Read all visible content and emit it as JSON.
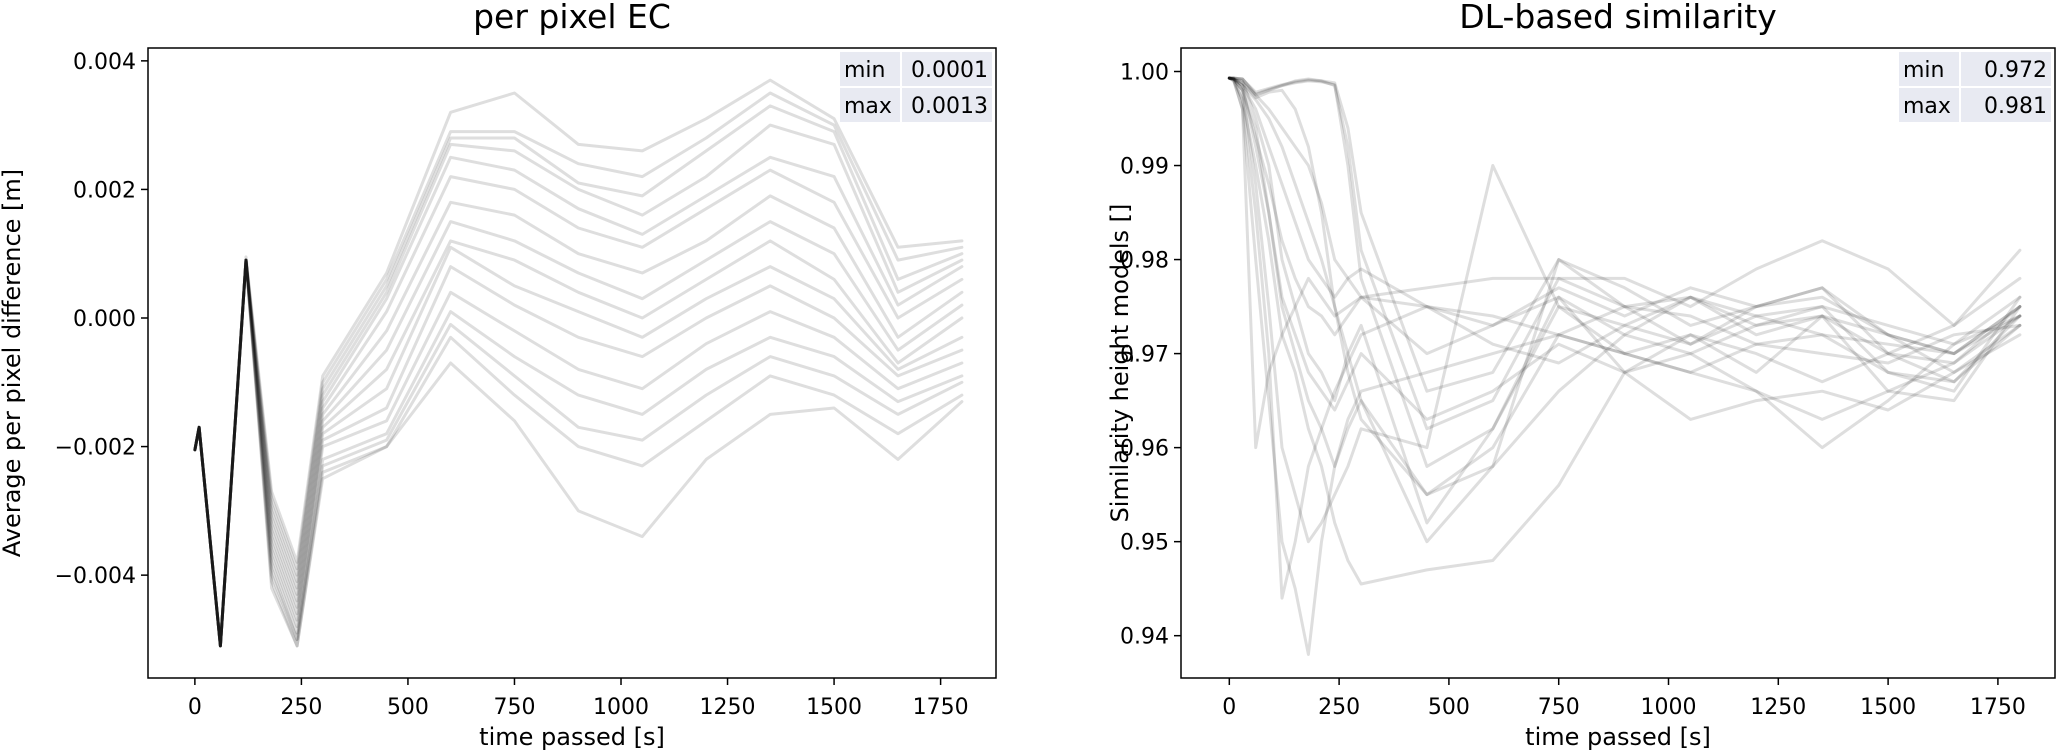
{
  "chart_data": [
    {
      "type": "line",
      "title": "per pixel EC",
      "xlabel": "time passed [s]",
      "ylabel": "Average per pixel difference [m]",
      "xlim": [
        -110,
        1880
      ],
      "ylim": [
        -0.0056,
        0.0042
      ],
      "xticks": [
        0,
        250,
        500,
        750,
        1000,
        1250,
        1500,
        1750
      ],
      "xtick_labels": [
        "0",
        "250",
        "500",
        "750",
        "1000",
        "1250",
        "1500",
        "1750"
      ],
      "yticks": [
        0.004,
        0.002,
        0.0,
        -0.002,
        -0.004
      ],
      "ytick_labels": [
        "0.004",
        "0.002",
        "0.000",
        "−0.002",
        "−0.004"
      ],
      "grid": false,
      "line_color": "#000000",
      "line_alpha": 0.13,
      "table": [
        {
          "label": "min",
          "value": "0.0001"
        },
        {
          "label": "max",
          "value": "0.0013"
        }
      ],
      "x": [
        0,
        10,
        60,
        120,
        180,
        240,
        300,
        450,
        600,
        750,
        900,
        1050,
        1200,
        1350,
        1500,
        1650,
        1800
      ],
      "series": [
        {
          "values": [
            -0.00205,
            -0.0017,
            -0.0051,
            0.00095,
            -0.0027,
            -0.0038,
            -0.0009,
            0.0007,
            0.0032,
            0.0035,
            0.0027,
            0.0026,
            0.0031,
            0.0037,
            0.0031,
            0.0011,
            0.0012
          ]
        },
        {
          "values": [
            -0.00205,
            -0.0017,
            -0.0051,
            0.0009,
            -0.0028,
            -0.0039,
            -0.001,
            0.0006,
            0.0029,
            0.0029,
            0.0024,
            0.0022,
            0.0028,
            0.0035,
            0.003,
            0.0009,
            0.0011
          ]
        },
        {
          "values": [
            -0.00205,
            -0.0017,
            -0.0051,
            0.0009,
            -0.0029,
            -0.004,
            -0.0011,
            0.0005,
            0.0028,
            0.0028,
            0.0021,
            0.0019,
            0.0026,
            0.0033,
            0.0029,
            0.0006,
            0.001
          ]
        },
        {
          "values": [
            -0.00205,
            -0.0017,
            -0.0051,
            0.0009,
            -0.003,
            -0.0041,
            -0.0012,
            0.0004,
            0.0027,
            0.0026,
            0.002,
            0.0016,
            0.0022,
            0.003,
            0.0027,
            0.0004,
            0.0009
          ]
        },
        {
          "values": [
            -0.00205,
            -0.0017,
            -0.0051,
            0.0009,
            -0.0031,
            -0.0042,
            -0.0013,
            0.0003,
            0.0025,
            0.0023,
            0.0017,
            0.0013,
            0.0019,
            0.0025,
            0.0022,
            0.0002,
            0.0008
          ]
        },
        {
          "values": [
            -0.00205,
            -0.0017,
            -0.0051,
            0.0009,
            -0.0032,
            -0.0043,
            -0.0014,
            0.0001,
            0.0022,
            0.002,
            0.0014,
            0.0011,
            0.0017,
            0.0023,
            0.0018,
            0.0,
            0.0006
          ]
        },
        {
          "values": [
            -0.00205,
            -0.0017,
            -0.0051,
            0.0009,
            -0.0033,
            -0.0044,
            -0.0015,
            -0.0002,
            0.0018,
            0.0016,
            0.001,
            0.0007,
            0.0012,
            0.0019,
            0.0014,
            -0.0003,
            0.0004
          ]
        },
        {
          "values": [
            -0.00205,
            -0.0017,
            -0.0051,
            0.0009,
            -0.0034,
            -0.0045,
            -0.0016,
            -0.0005,
            0.0015,
            0.0012,
            0.0007,
            0.0003,
            0.0009,
            0.0015,
            0.001,
            -0.0005,
            0.0002
          ]
        },
        {
          "values": [
            -0.00205,
            -0.0017,
            -0.0051,
            0.0009,
            -0.0035,
            -0.0046,
            -0.0017,
            -0.0008,
            0.0012,
            0.0009,
            0.0004,
            0.0,
            0.0006,
            0.0012,
            0.0006,
            -0.0007,
            0.0
          ]
        },
        {
          "values": [
            -0.00205,
            -0.0017,
            -0.0051,
            0.0009,
            -0.0036,
            -0.0047,
            -0.0018,
            -0.0011,
            0.0011,
            0.0005,
            0.0001,
            -0.0003,
            0.0003,
            0.0008,
            0.0003,
            -0.0008,
            -0.0003
          ]
        },
        {
          "values": [
            -0.00205,
            -0.0017,
            -0.0051,
            0.0009,
            -0.0037,
            -0.0048,
            -0.0019,
            -0.0014,
            0.0008,
            0.0002,
            -0.0003,
            -0.0006,
            0.0,
            0.0005,
            0.0,
            -0.0009,
            -0.0005
          ]
        },
        {
          "values": [
            -0.00205,
            -0.0017,
            -0.0051,
            0.0009,
            -0.0038,
            -0.0049,
            -0.002,
            -0.0016,
            0.0004,
            -0.0002,
            -0.0008,
            -0.0011,
            -0.0004,
            0.0001,
            -0.0003,
            -0.0011,
            -0.0007
          ]
        },
        {
          "values": [
            -0.00205,
            -0.0017,
            -0.0051,
            0.0009,
            -0.0039,
            -0.005,
            -0.0022,
            -0.0018,
            0.0001,
            -0.0006,
            -0.0012,
            -0.0015,
            -0.0008,
            -0.0003,
            -0.0006,
            -0.0013,
            -0.0009
          ]
        },
        {
          "values": [
            -0.00205,
            -0.0017,
            -0.0051,
            0.0009,
            -0.004,
            -0.005,
            -0.0023,
            -0.0019,
            -0.0001,
            -0.0009,
            -0.0017,
            -0.0019,
            -0.0012,
            -0.0006,
            -0.0009,
            -0.0015,
            -0.001
          ]
        },
        {
          "values": [
            -0.00205,
            -0.0017,
            -0.0051,
            0.0009,
            -0.0041,
            -0.0051,
            -0.0024,
            -0.002,
            -0.0003,
            -0.0012,
            -0.002,
            -0.0023,
            -0.0016,
            -0.0009,
            -0.0012,
            -0.0018,
            -0.0012
          ]
        },
        {
          "values": [
            -0.00205,
            -0.0017,
            -0.0051,
            0.0009,
            -0.0042,
            -0.0051,
            -0.0025,
            -0.002,
            -0.0007,
            -0.0016,
            -0.003,
            -0.0034,
            -0.0022,
            -0.0015,
            -0.0014,
            -0.0022,
            -0.0013
          ]
        }
      ]
    },
    {
      "type": "line",
      "title": "DL-based similarity",
      "xlabel": "time passed [s]",
      "ylabel": "Similarity height models []",
      "xlim": [
        -110,
        1880
      ],
      "ylim": [
        0.9355,
        1.0025
      ],
      "xticks": [
        0,
        250,
        500,
        750,
        1000,
        1250,
        1500,
        1750
      ],
      "xtick_labels": [
        "0",
        "250",
        "500",
        "750",
        "1000",
        "1250",
        "1500",
        "1750"
      ],
      "yticks": [
        1.0,
        0.99,
        0.98,
        0.97,
        0.96,
        0.95,
        0.94
      ],
      "ytick_labels": [
        "1.00",
        "0.99",
        "0.98",
        "0.97",
        "0.96",
        "0.95",
        "0.94"
      ],
      "grid": false,
      "line_color": "#000000",
      "line_alpha": 0.13,
      "table": [
        {
          "label": "min",
          "value": "0.972"
        },
        {
          "label": "max",
          "value": "0.981"
        }
      ],
      "x": [
        0,
        10,
        30,
        60,
        90,
        120,
        150,
        180,
        210,
        240,
        270,
        300,
        450,
        600,
        750,
        900,
        1050,
        1200,
        1350,
        1500,
        1650,
        1800
      ],
      "series": [
        {
          "values": [
            0.9993,
            0.9993,
            0.9992,
            0.9975,
            0.998,
            0.9985,
            0.999,
            0.9992,
            0.999,
            0.9988,
            0.994,
            0.985,
            0.966,
            0.968,
            0.98,
            0.977,
            0.973,
            0.975,
            0.977,
            0.97,
            0.969,
            0.975
          ]
        },
        {
          "values": [
            0.9993,
            0.9993,
            0.9992,
            0.9978,
            0.9982,
            0.9986,
            0.9989,
            0.9991,
            0.999,
            0.9985,
            0.992,
            0.981,
            0.962,
            0.965,
            0.978,
            0.975,
            0.971,
            0.974,
            0.975,
            0.968,
            0.967,
            0.974
          ]
        },
        {
          "values": [
            0.9993,
            0.9993,
            0.9992,
            0.9976,
            0.9981,
            0.9985,
            0.9988,
            0.999,
            0.9989,
            0.9986,
            0.99,
            0.978,
            0.958,
            0.962,
            0.976,
            0.972,
            0.97,
            0.973,
            0.974,
            0.966,
            0.965,
            0.975
          ]
        },
        {
          "values": [
            0.9993,
            0.9993,
            0.999,
            0.995,
            0.99,
            0.98,
            0.975,
            0.97,
            0.968,
            0.965,
            0.97,
            0.973,
            0.952,
            0.962,
            0.975,
            0.973,
            0.976,
            0.972,
            0.974,
            0.97,
            0.967,
            0.973
          ]
        },
        {
          "values": [
            0.9993,
            0.9993,
            0.9985,
            0.992,
            0.985,
            0.975,
            0.97,
            0.965,
            0.962,
            0.958,
            0.962,
            0.965,
            0.95,
            0.958,
            0.98,
            0.975,
            0.974,
            0.971,
            0.972,
            0.968,
            0.966,
            0.976
          ]
        },
        {
          "values": [
            0.9993,
            0.9992,
            0.998,
            0.988,
            0.975,
            0.96,
            0.955,
            0.95,
            0.952,
            0.955,
            0.958,
            0.962,
            0.96,
            0.99,
            0.975,
            0.97,
            0.972,
            0.968,
            0.974,
            0.972,
            0.97,
            0.975
          ]
        },
        {
          "values": [
            0.9993,
            0.999,
            0.997,
            0.985,
            0.97,
            0.944,
            0.95,
            0.958,
            0.962,
            0.966,
            0.969,
            0.972,
            0.975,
            0.973,
            0.977,
            0.974,
            0.977,
            0.975,
            0.976,
            0.972,
            0.97,
            0.975
          ]
        },
        {
          "values": [
            0.9993,
            0.999,
            0.996,
            0.98,
            0.965,
            0.95,
            0.945,
            0.938,
            0.95,
            0.958,
            0.963,
            0.966,
            0.968,
            0.97,
            0.972,
            0.975,
            0.976,
            0.974,
            0.972,
            0.971,
            0.97,
            0.974
          ]
        },
        {
          "values": [
            0.9993,
            0.9992,
            0.997,
            0.99,
            0.982,
            0.972,
            0.968,
            0.962,
            0.958,
            0.952,
            0.948,
            0.9455,
            0.947,
            0.948,
            0.956,
            0.968,
            0.97,
            0.966,
            0.963,
            0.966,
            0.969,
            0.974
          ]
        },
        {
          "values": [
            0.9993,
            0.9991,
            0.996,
            0.96,
            0.968,
            0.972,
            0.975,
            0.978,
            0.976,
            0.974,
            0.975,
            0.976,
            0.97,
            0.973,
            0.976,
            0.968,
            0.963,
            0.965,
            0.966,
            0.964,
            0.968,
            0.973
          ]
        },
        {
          "values": [
            0.9993,
            0.9992,
            0.998,
            0.993,
            0.988,
            0.982,
            0.978,
            0.975,
            0.974,
            0.972,
            0.974,
            0.976,
            0.977,
            0.978,
            0.978,
            0.978,
            0.975,
            0.979,
            0.982,
            0.979,
            0.973,
            0.981
          ]
        },
        {
          "values": [
            0.9993,
            0.9992,
            0.9985,
            0.996,
            0.992,
            0.988,
            0.984,
            0.98,
            0.978,
            0.976,
            0.978,
            0.979,
            0.975,
            0.974,
            0.972,
            0.97,
            0.968,
            0.966,
            0.96,
            0.965,
            0.971,
            0.976
          ]
        },
        {
          "values": [
            0.9993,
            0.9992,
            0.9988,
            0.9975,
            0.996,
            0.994,
            0.992,
            0.99,
            0.986,
            0.98,
            0.978,
            0.976,
            0.975,
            0.971,
            0.969,
            0.973,
            0.971,
            0.975,
            0.977,
            0.972,
            0.968,
            0.972
          ]
        },
        {
          "values": [
            0.9993,
            0.9992,
            0.9985,
            0.997,
            0.995,
            0.992,
            0.988,
            0.984,
            0.98,
            0.975,
            0.97,
            0.965,
            0.955,
            0.96,
            0.972,
            0.97,
            0.968,
            0.971,
            0.97,
            0.969,
            0.972,
            0.973
          ]
        },
        {
          "values": [
            0.9993,
            0.9992,
            0.9988,
            0.9972,
            0.9978,
            0.998,
            0.996,
            0.992,
            0.985,
            0.975,
            0.968,
            0.963,
            0.955,
            0.958,
            0.966,
            0.972,
            0.976,
            0.973,
            0.975,
            0.973,
            0.971,
            0.974
          ]
        },
        {
          "values": [
            0.9993,
            0.9992,
            0.998,
            0.994,
            0.985,
            0.976,
            0.972,
            0.968,
            0.966,
            0.964,
            0.967,
            0.97,
            0.963,
            0.966,
            0.971,
            0.968,
            0.972,
            0.97,
            0.967,
            0.97,
            0.973,
            0.978
          ]
        }
      ]
    }
  ]
}
